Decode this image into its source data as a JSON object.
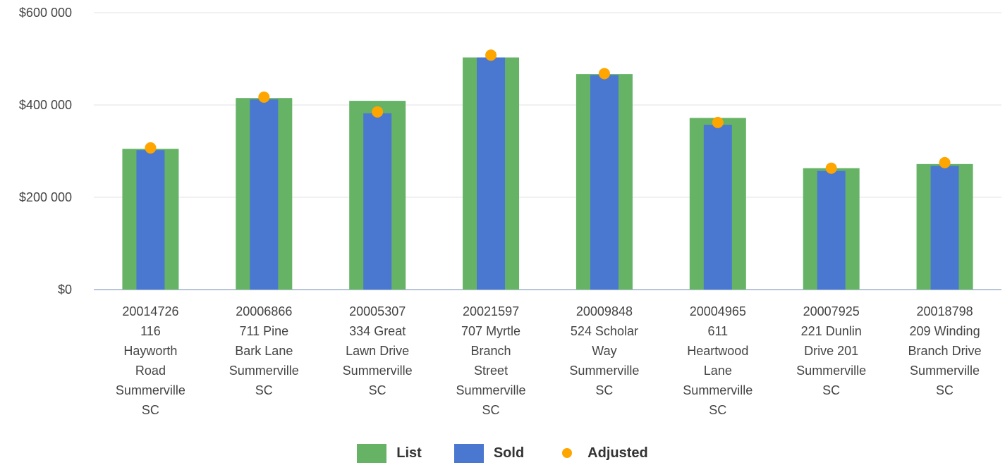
{
  "chart_data": {
    "type": "bar",
    "title": "",
    "xlabel": "",
    "ylabel": "",
    "ylim": [
      0,
      600000
    ],
    "yticks": [
      0,
      200000,
      400000,
      600000
    ],
    "ytick_labels": [
      "$0",
      "$200 000",
      "$400 000",
      "$600 000"
    ],
    "grid": true,
    "legend_position": "bottom-center",
    "categories": [
      [
        "20014726",
        "116",
        "Hayworth",
        "Road",
        "Summerville",
        "SC"
      ],
      [
        "20006866",
        "711 Pine",
        "Bark Lane",
        "Summerville",
        "SC"
      ],
      [
        "20005307",
        "334 Great",
        "Lawn Drive",
        "Summerville",
        "SC"
      ],
      [
        "20021597",
        "707 Myrtle",
        "Branch",
        "Street",
        "Summerville",
        "SC"
      ],
      [
        "20009848",
        "524 Scholar",
        "Way",
        "Summerville",
        "SC"
      ],
      [
        "20004965",
        "611",
        "Heartwood",
        "Lane",
        "Summerville",
        "SC"
      ],
      [
        "20007925",
        "221 Dunlin",
        "Drive 201",
        "Summerville",
        "SC"
      ],
      [
        "20018798",
        "209 Winding",
        "Branch Drive",
        "Summerville",
        "SC"
      ]
    ],
    "series": [
      {
        "name": "List",
        "kind": "bar-wide",
        "color": "#66b366",
        "values": [
          305000,
          415000,
          409000,
          503000,
          467000,
          372000,
          263000,
          272000
        ]
      },
      {
        "name": "Sold",
        "kind": "bar-narrow",
        "color": "#4a77cf",
        "values": [
          302000,
          412000,
          382000,
          503000,
          465000,
          357000,
          257000,
          268000
        ]
      },
      {
        "name": "Adjusted",
        "kind": "point",
        "color": "#ffa500",
        "values": [
          307000,
          417000,
          385000,
          508000,
          468000,
          362000,
          263000,
          275000
        ]
      }
    ]
  }
}
